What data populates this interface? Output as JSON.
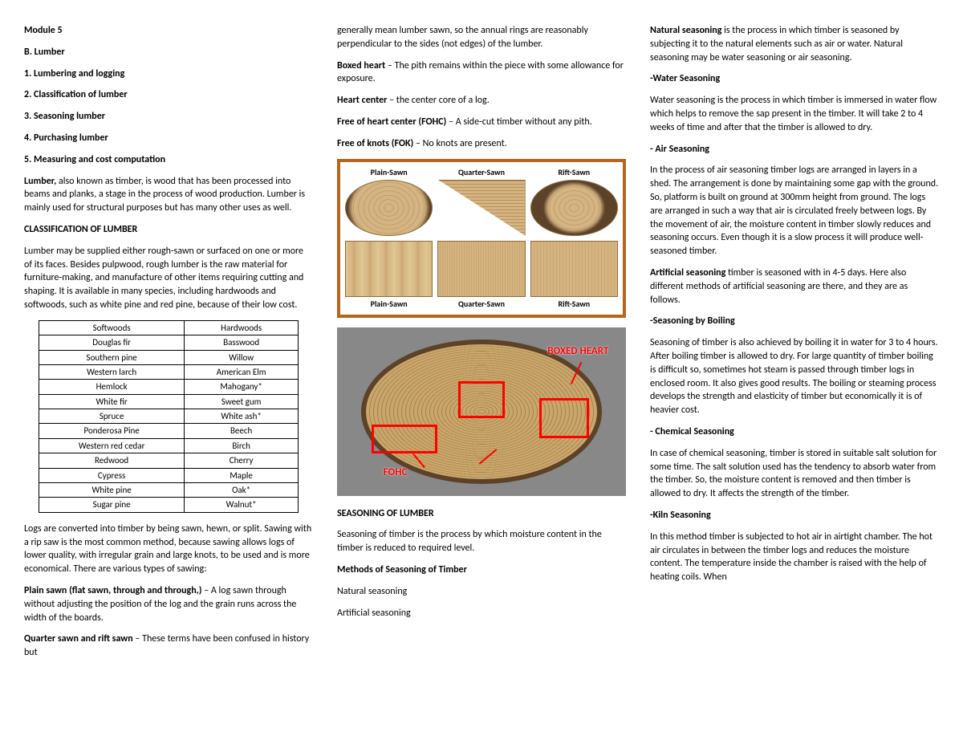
{
  "col1": {
    "module": "Module 5",
    "sectionB": "B. Lumber",
    "item1": "1. Lumbering and logging",
    "item2": "2. Classification of lumber",
    "item3": "3. Seasoning lumber",
    "item4": "4. Purchasing lumber",
    "item5": "5. Measuring and cost computation",
    "introLead": "Lumber,",
    "introRest": "also known as timber, is wood that has been processed into beams and planks, a stage in the process of wood production. Lumber is mainly used for structural purposes but has many other uses as well.",
    "classHeading": "CLASSIFICATION OF LUMBER",
    "classPara": "Lumber may be supplied either rough-sawn or surfaced on one or more of its faces. Besides pulpwood, rough lumber is the raw material for furniture-making, and manufacture of other items requiring cutting and shaping. It is available in many species, including hardwoods and softwoods, such as white pine and red pine, because of their low cost.",
    "tableHeaders": {
      "soft": "Softwoods",
      "hard": "Hardwoods"
    },
    "tableRows": [
      [
        "Douglas fir",
        "Basswood"
      ],
      [
        "Southern pine",
        "Willow"
      ],
      [
        "Western larch",
        "American Elm"
      ],
      [
        "Hemlock",
        "Mahogany*"
      ],
      [
        "White fir",
        "Sweet gum"
      ],
      [
        "Spruce",
        "White ash*"
      ],
      [
        "Ponderosa Pine",
        "Beech"
      ],
      [
        "Western red cedar",
        "Birch"
      ],
      [
        "Redwood",
        "Cherry"
      ],
      [
        "Cypress",
        "Maple"
      ],
      [
        "White pine",
        "Oak*"
      ],
      [
        "Sugar pine",
        "Walnut*"
      ]
    ],
    "logsPara": "Logs are converted into timber by being sawn, hewn, or split. Sawing with a rip saw is the most common method, because sawing allows logs of lower quality, with irregular grain and large knots, to be used and is more economical. There are various types of sawing:",
    "plainLead": "Plain sawn (flat sawn, through and through,)",
    "plainRest": " – A log sawn through without adjusting the position of the log and the grain runs across the width of the boards.",
    "quarterLead": "Quarter sawn and rift sawn",
    "quarterRest": " – These terms have been confused in history but"
  },
  "col2": {
    "contPara": "generally mean lumber sawn, so the annual rings are reasonably perpendicular to the sides (not edges) of the lumber.",
    "boxedLead": "Boxed heart",
    "boxedRest": " – The pith remains within the piece with some allowance for exposure.",
    "heartLead": "Heart center",
    "heartRest": " – the center core of a log.",
    "fohcLead": "Free of heart center (FOHC)",
    "fohcRest": " – A side-cut timber without any pith.",
    "fokLead": "Free of knots (FOK)",
    "fokRest": " – No knots are present.",
    "sawnLabels": {
      "plain": "Plain-Sawn",
      "quarter": "Quarter-Sawn",
      "rift": "Rift-Sawn"
    },
    "logLabels": {
      "boxed": "BOXED HEART",
      "fohc": "FOHC"
    },
    "seasonHeading": "SEASONING OF LUMBER",
    "seasonPara": "Seasoning of timber is the process by which moisture content in the timber is reduced to required level.",
    "methodsHeading": "Methods of Seasoning of Timber",
    "natural": "Natural seasoning",
    "artificial": "Artificial seasoning"
  },
  "col3": {
    "naturalLead": "Natural seasoning",
    "naturalRest": " is the process in which timber is seasoned by subjecting it to the natural elements such as air or water. Natural seasoning may be water seasoning or air seasoning.",
    "waterHeading": "-Water Seasoning",
    "waterPara": "Water seasoning is the process in which timber is immersed in water flow which helps to remove the sap present in the timber. It will take 2 to 4 weeks of time and after that the timber is allowed to dry.",
    "airHeading": "- Air Seasoning",
    "airPara": "In the process of air seasoning timber logs are arranged in layers in a shed. The arrangement is done by maintaining some gap with the ground. So, platform is built on ground at 300mm height from ground. The logs are arranged in such a way that air is circulated freely between logs. By the movement of air, the moisture content in timber slowly reduces and seasoning occurs. Even though it is a slow process it will produce well-seasoned timber.",
    "artificialLead": "Artificial seasoning",
    "artificialRest": " timber is seasoned with in 4-5 days. Here also different methods of artificial seasoning are there, and they are as follows.",
    "boilHeading": "-Seasoning by Boiling",
    "boilPara": "Seasoning of timber is also achieved by boiling it in water for 3 to 4 hours. After boiling timber is allowed to dry. For large quantity of timber boiling is difficult so, sometimes hot steam is passed through timber logs in enclosed room. It also gives good results. The boiling or steaming process develops the strength and elasticity of timber but economically it is of heavier cost.",
    "chemHeading": "- Chemical Seasoning",
    "chemPara": "In case of chemical seasoning, timber is stored in suitable salt solution for some time. The salt solution used has the tendency to absorb water from the timber. So, the moisture content is removed and then timber is allowed to dry. It affects the strength of the timber.",
    "kilnHeading": "-Kiln Seasoning",
    "kilnPara": "In this method timber is subjected to hot air in airtight chamber. The hot air circulates in between the timber logs and reduces the moisture content. The temperature inside the chamber is raised with the help of heating coils. When"
  }
}
